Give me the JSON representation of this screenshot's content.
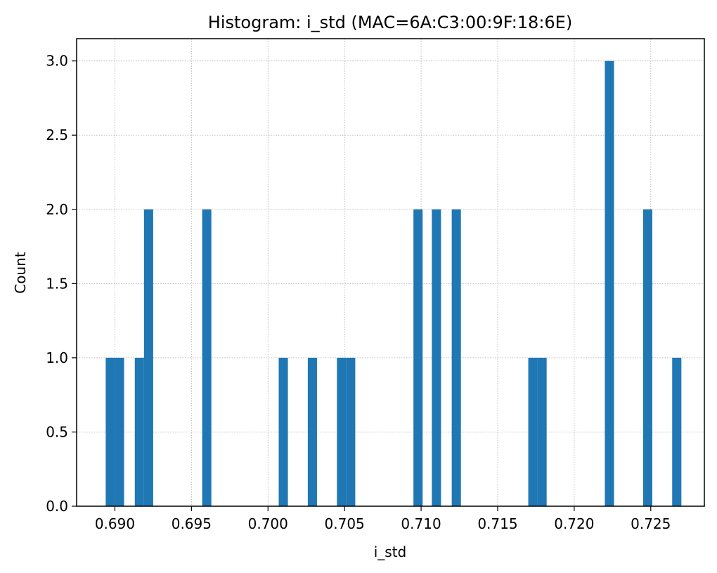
{
  "chart_data": {
    "type": "bar",
    "title": "Histogram: i_std (MAC=6A:C3:00:9F:18:6E)",
    "xlabel": "i_std",
    "ylabel": "Count",
    "xlim": [
      0.6875,
      0.7285
    ],
    "ylim": [
      0,
      3.15
    ],
    "xticks": [
      "0.690",
      "0.695",
      "0.700",
      "0.705",
      "0.710",
      "0.715",
      "0.720",
      "0.725"
    ],
    "yticks": [
      "0.0",
      "0.5",
      "1.0",
      "1.5",
      "2.0",
      "2.5",
      "3.0"
    ],
    "grid": true,
    "bar_color": "#1f77b4",
    "bins": [
      {
        "x0": 0.6894,
        "x1": 0.69,
        "count": 1
      },
      {
        "x0": 0.69,
        "x1": 0.6906,
        "count": 1
      },
      {
        "x0": 0.6913,
        "x1": 0.6919,
        "count": 1
      },
      {
        "x0": 0.6919,
        "x1": 0.6925,
        "count": 2
      },
      {
        "x0": 0.6957,
        "x1": 0.6963,
        "count": 2
      },
      {
        "x0": 0.7007,
        "x1": 0.7013,
        "count": 1
      },
      {
        "x0": 0.7026,
        "x1": 0.7032,
        "count": 1
      },
      {
        "x0": 0.7045,
        "x1": 0.7051,
        "count": 1
      },
      {
        "x0": 0.7051,
        "x1": 0.7057,
        "count": 1
      },
      {
        "x0": 0.7095,
        "x1": 0.7101,
        "count": 2
      },
      {
        "x0": 0.7107,
        "x1": 0.7113,
        "count": 2
      },
      {
        "x0": 0.712,
        "x1": 0.7126,
        "count": 2
      },
      {
        "x0": 0.717,
        "x1": 0.7176,
        "count": 1
      },
      {
        "x0": 0.7176,
        "x1": 0.7182,
        "count": 1
      },
      {
        "x0": 0.722,
        "x1": 0.7226,
        "count": 3
      },
      {
        "x0": 0.7245,
        "x1": 0.7251,
        "count": 2
      },
      {
        "x0": 0.7264,
        "x1": 0.727,
        "count": 1
      }
    ]
  }
}
